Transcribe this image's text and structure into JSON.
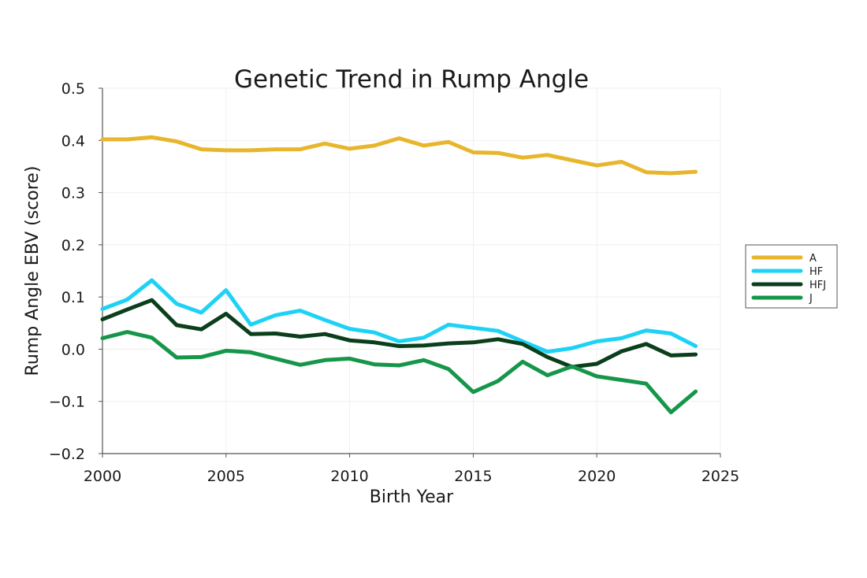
{
  "chart_data": {
    "type": "line",
    "title": "Genetic Trend in Rump Angle",
    "xlabel": "Birth Year",
    "ylabel": "Rump Angle EBV (score)",
    "xlim": [
      2000,
      2025
    ],
    "ylim": [
      -0.2,
      0.5
    ],
    "xticks": [
      2000,
      2005,
      2010,
      2015,
      2020,
      2025
    ],
    "xtick_labels": [
      "2000",
      "2005",
      "2010",
      "2015",
      "2020",
      "2025"
    ],
    "yticks": [
      0.5,
      0.4,
      0.3,
      0.2,
      0.1,
      0.0,
      -0.1,
      -0.2
    ],
    "ytick_labels": [
      "0.5",
      "0.4",
      "0.3",
      "0.2",
      "0.1",
      "0.0",
      "−0.1",
      "−0.2"
    ],
    "grid": true,
    "legend_position": "right",
    "x": [
      2000,
      2001,
      2002,
      2003,
      2004,
      2005,
      2006,
      2007,
      2008,
      2009,
      2010,
      2011,
      2012,
      2013,
      2014,
      2015,
      2016,
      2017,
      2018,
      2019,
      2020,
      2021,
      2022,
      2023,
      2024
    ],
    "series": [
      {
        "name": "A",
        "color": "#E8B62C",
        "values": [
          0.402,
          0.402,
          0.406,
          0.398,
          0.383,
          0.381,
          0.381,
          0.383,
          0.383,
          0.394,
          0.384,
          0.39,
          0.404,
          0.39,
          0.397,
          0.377,
          0.376,
          0.367,
          0.372,
          0.362,
          0.352,
          0.359,
          0.339,
          0.337,
          0.34
        ]
      },
      {
        "name": "HF",
        "color": "#1ED2F5",
        "values": [
          0.077,
          0.095,
          0.132,
          0.087,
          0.07,
          0.113,
          0.047,
          0.065,
          0.074,
          0.056,
          0.039,
          0.032,
          0.015,
          0.022,
          0.047,
          0.041,
          0.035,
          0.015,
          -0.005,
          0.002,
          0.015,
          0.021,
          0.036,
          0.03,
          0.006
        ]
      },
      {
        "name": "HFJ",
        "color": "#0B3F1C",
        "values": [
          0.057,
          0.076,
          0.094,
          0.046,
          0.038,
          0.068,
          0.029,
          0.03,
          0.024,
          0.029,
          0.017,
          0.013,
          0.006,
          0.007,
          0.011,
          0.013,
          0.019,
          0.01,
          -0.015,
          -0.034,
          -0.028,
          -0.004,
          0.01,
          -0.012,
          -0.01
        ]
      },
      {
        "name": "J",
        "color": "#16964A",
        "values": [
          0.021,
          0.033,
          0.022,
          -0.016,
          -0.015,
          -0.003,
          -0.006,
          -0.018,
          -0.03,
          -0.021,
          -0.018,
          -0.029,
          -0.031,
          -0.021,
          -0.038,
          -0.082,
          -0.061,
          -0.024,
          -0.05,
          -0.033,
          -0.052,
          -0.059,
          -0.066,
          -0.121,
          -0.081
        ]
      }
    ]
  }
}
